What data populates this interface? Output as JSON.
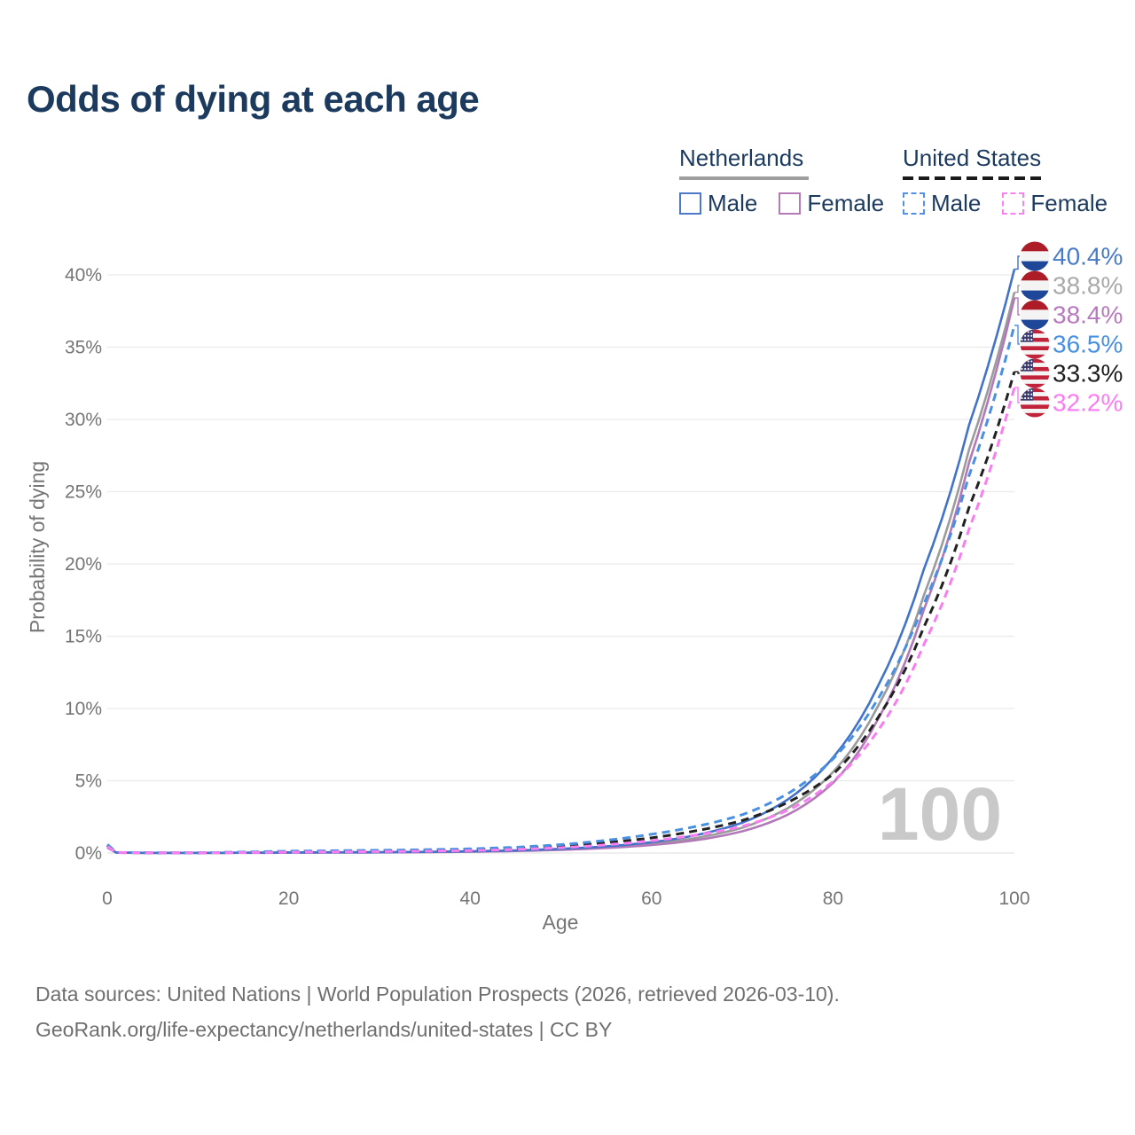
{
  "title": "Odds of dying at each age",
  "legend": {
    "groups": [
      {
        "label": "Netherlands",
        "line_style": "solid",
        "line_color": "#9e9e9e",
        "items": [
          {
            "label": "Male",
            "color": "#4e79c8",
            "dashed": false
          },
          {
            "label": "Female",
            "color": "#b47ab8",
            "dashed": false
          }
        ]
      },
      {
        "label": "United States",
        "line_style": "dashed",
        "line_color": "#1a1a1a",
        "items": [
          {
            "label": "Male",
            "color": "#5590e8",
            "dashed": true
          },
          {
            "label": "Female",
            "color": "#fa82f0",
            "dashed": true
          }
        ]
      }
    ]
  },
  "watermark": "100",
  "footer": {
    "line1": "Data sources: United Nations | World Population Prospects (2026, retrieved 2026-03-10).",
    "line2": "GeoRank.org/life-expectancy/netherlands/united-states | CC BY"
  },
  "chart_data": {
    "type": "line",
    "title": "Odds of dying at each age",
    "xlabel": "Age",
    "ylabel": "Probability of dying",
    "xlim": [
      0,
      100
    ],
    "ylim": [
      0,
      42
    ],
    "grid": "horizontal",
    "legend_position": "top-right",
    "x_ticks": [
      0,
      20,
      40,
      60,
      80,
      100
    ],
    "x_tick_labels": [
      "0",
      "20",
      "40",
      "60",
      "80",
      "100"
    ],
    "y_ticks": [
      0,
      5,
      10,
      15,
      20,
      25,
      30,
      35,
      40
    ],
    "y_tick_labels": [
      "0%",
      "5%",
      "10%",
      "15%",
      "20%",
      "25%",
      "30%",
      "35%",
      "40%"
    ],
    "ages": [
      0,
      1,
      5,
      10,
      15,
      20,
      25,
      30,
      35,
      40,
      45,
      50,
      55,
      60,
      65,
      70,
      75,
      80,
      85,
      90,
      95,
      100
    ],
    "series": [
      {
        "name": "Netherlands Male",
        "country": "Netherlands",
        "sex": "Male",
        "flag": "nl",
        "color": "#4273c8",
        "dashed": false,
        "end_value": 40.4,
        "end_label": "40.4%",
        "label_color": "#4a7bc8",
        "values": [
          0.42,
          0.03,
          0.01,
          0.01,
          0.02,
          0.04,
          0.05,
          0.06,
          0.08,
          0.12,
          0.18,
          0.29,
          0.46,
          0.75,
          1.25,
          2.1,
          3.7,
          6.6,
          11.6,
          19.6,
          29.6,
          40.4
        ]
      },
      {
        "name": "Netherlands Both sexes",
        "country": "Netherlands",
        "sex": "Both",
        "flag": "nl",
        "color": "#9b9b9b",
        "dashed": false,
        "end_value": 38.8,
        "end_label": "38.8%",
        "label_color": "#a9a9a9",
        "values": [
          0.4,
          0.03,
          0.01,
          0.01,
          0.02,
          0.03,
          0.04,
          0.05,
          0.07,
          0.1,
          0.16,
          0.25,
          0.4,
          0.65,
          1.05,
          1.75,
          3.1,
          5.6,
          10.2,
          17.8,
          27.9,
          38.8
        ]
      },
      {
        "name": "Netherlands Female",
        "country": "Netherlands",
        "sex": "Female",
        "flag": "nl",
        "color": "#b279b8",
        "dashed": false,
        "end_value": 38.4,
        "end_label": "38.4%",
        "label_color": "#b779bd",
        "values": [
          0.37,
          0.02,
          0.01,
          0.01,
          0.01,
          0.02,
          0.03,
          0.04,
          0.06,
          0.09,
          0.14,
          0.22,
          0.35,
          0.55,
          0.9,
          1.5,
          2.65,
          4.85,
          9.3,
          16.8,
          27.0,
          38.4
        ]
      },
      {
        "name": "United States Male",
        "country": "United States",
        "sex": "Male",
        "flag": "us",
        "color": "#4a90e2",
        "dashed": true,
        "end_value": 36.5,
        "end_label": "36.5%",
        "label_color": "#4a90e2",
        "values": [
          0.6,
          0.04,
          0.02,
          0.02,
          0.07,
          0.13,
          0.16,
          0.19,
          0.23,
          0.29,
          0.4,
          0.58,
          0.88,
          1.3,
          1.85,
          2.65,
          4.1,
          6.5,
          10.7,
          17.2,
          26.1,
          36.5
        ]
      },
      {
        "name": "United States Both sexes",
        "country": "United States",
        "sex": "Both",
        "flag": "us",
        "color": "#222222",
        "dashed": true,
        "end_value": 33.3,
        "end_label": "33.3%",
        "label_color": "#1f1f1f",
        "values": [
          0.52,
          0.03,
          0.02,
          0.02,
          0.05,
          0.09,
          0.12,
          0.14,
          0.18,
          0.23,
          0.32,
          0.48,
          0.72,
          1.05,
          1.55,
          2.25,
          3.5,
          5.45,
          9.4,
          15.6,
          23.9,
          33.3
        ]
      },
      {
        "name": "United States Female",
        "country": "United States",
        "sex": "Female",
        "flag": "us",
        "color": "#f87df0",
        "dashed": true,
        "end_value": 32.2,
        "end_label": "32.2%",
        "label_color": "#fb7bf2",
        "values": [
          0.45,
          0.03,
          0.01,
          0.01,
          0.03,
          0.06,
          0.08,
          0.1,
          0.13,
          0.17,
          0.25,
          0.37,
          0.57,
          0.85,
          1.25,
          1.85,
          2.95,
          4.95,
          8.5,
          14.4,
          22.4,
          32.2
        ]
      }
    ]
  }
}
